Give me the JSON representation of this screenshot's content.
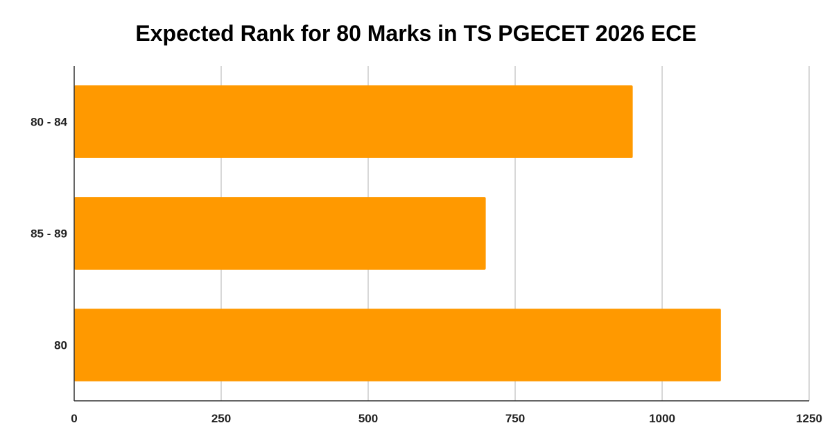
{
  "chart_data": {
    "type": "bar",
    "orientation": "horizontal",
    "title": "Expected Rank for 80 Marks in TS PGECET 2026 ECE",
    "xlabel": "",
    "ylabel": "",
    "categories": [
      "80 - 84",
      "85 - 89",
      "80"
    ],
    "values": [
      950,
      700,
      1100
    ],
    "xlim": [
      0,
      1250
    ],
    "xticks": [
      0,
      250,
      500,
      750,
      1000,
      1250
    ],
    "grid": true,
    "legend": "none",
    "bar_color": "#FF9900"
  }
}
